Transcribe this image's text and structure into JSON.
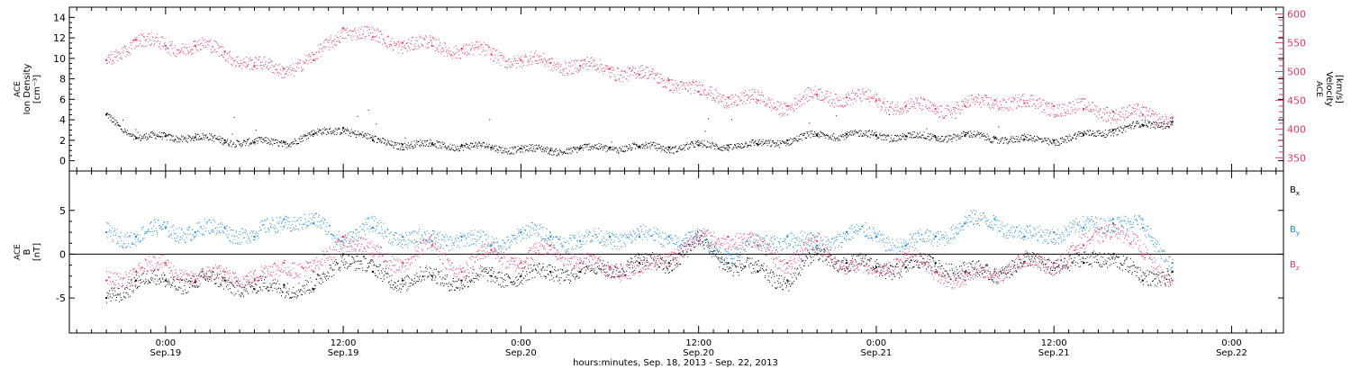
{
  "colors": {
    "black": "#000000",
    "blue": "#1f8be0",
    "pink": "#e8396b"
  },
  "chart_data": [
    {
      "type": "scatter",
      "panel": "plasma",
      "ylabel_left": [
        "ACE",
        "Ion Density",
        "[cm⁻³]"
      ],
      "ylabel_right": [
        "ACE",
        "Velocity",
        "[km/s]"
      ],
      "left_ticks": [
        "0",
        "2",
        "4",
        "6",
        "8",
        "10",
        "12",
        "14"
      ],
      "left_ylim": [
        -1,
        15
      ],
      "right_ticks": [
        "350",
        "400",
        "450",
        "500",
        "550",
        "600"
      ],
      "right_ylim": [
        327,
        612
      ],
      "x_unit": "hours since 00:00 Sep. 18, 2013",
      "series": [
        {
          "axis": "left",
          "color": "black",
          "x": [
            20,
            22,
            24,
            26,
            28,
            30,
            32,
            34,
            36,
            38,
            40,
            42,
            44,
            46,
            48,
            50,
            52,
            54,
            56,
            58,
            60,
            62,
            64,
            66,
            68,
            70,
            72,
            74,
            76,
            78,
            80,
            82,
            84,
            86,
            88,
            90,
            92
          ],
          "values": [
            4.5,
            2.2,
            2.4,
            2.3,
            2.0,
            1.8,
            1.8,
            2.6,
            3.2,
            2.0,
            1.6,
            1.6,
            1.5,
            1.3,
            1.2,
            1.0,
            1.2,
            1.3,
            1.4,
            1.3,
            1.5,
            1.5,
            1.6,
            2.0,
            2.5,
            2.6,
            2.5,
            2.4,
            2.3,
            2.5,
            2.2,
            2.1,
            2.0,
            2.5,
            3.0,
            3.5,
            3.8
          ]
        },
        {
          "axis": "right",
          "color": "pink",
          "x": [
            20,
            22,
            24,
            26,
            28,
            30,
            32,
            34,
            36,
            38,
            40,
            42,
            44,
            46,
            48,
            50,
            52,
            54,
            56,
            58,
            60,
            62,
            64,
            66,
            68,
            70,
            72,
            74,
            76,
            78,
            80,
            82,
            84,
            86,
            88,
            90,
            92
          ],
          "values": [
            520,
            555,
            545,
            545,
            535,
            510,
            505,
            520,
            575,
            560,
            550,
            545,
            540,
            530,
            520,
            515,
            510,
            505,
            495,
            485,
            465,
            455,
            450,
            440,
            460,
            455,
            450,
            440,
            435,
            440,
            450,
            445,
            440,
            435,
            430,
            425,
            420
          ]
        }
      ]
    },
    {
      "type": "scatter",
      "panel": "magnetic",
      "ylabel_left": [
        "ACE",
        "B",
        "[nT]"
      ],
      "left_ticks": [
        "-5",
        "0",
        "5"
      ],
      "left_ylim": [
        -9,
        9.5
      ],
      "reference_line": 0,
      "legend": [
        "Bx",
        "By",
        "Bz"
      ],
      "legend_placement": "right",
      "x_unit": "hours since 00:00 Sep. 18, 2013",
      "series": [
        {
          "name": "Bx",
          "color": "black",
          "x": [
            20,
            22,
            24,
            26,
            28,
            30,
            32,
            34,
            36,
            38,
            40,
            42,
            44,
            46,
            48,
            50,
            52,
            54,
            56,
            58,
            60,
            62,
            64,
            66,
            68,
            70,
            72,
            74,
            76,
            78,
            80,
            82,
            84,
            86,
            88,
            90,
            92
          ],
          "values": [
            -5.0,
            -3.0,
            -3.0,
            -3.2,
            -3.0,
            -4.0,
            -3.5,
            -4.0,
            0.0,
            -2.0,
            -3.0,
            -2.5,
            -3.0,
            -2.5,
            -2.5,
            -2.0,
            -2.0,
            -1.5,
            -1.0,
            -1.0,
            1.5,
            -1.0,
            -2.0,
            -3.0,
            0.0,
            -1.0,
            -1.5,
            -1.5,
            -1.0,
            -2.0,
            -2.0,
            -1.0,
            -1.0,
            -1.0,
            0.0,
            -3.0,
            -2.0
          ]
        },
        {
          "name": "By",
          "color": "blue",
          "x": [
            20,
            22,
            24,
            26,
            28,
            30,
            32,
            34,
            36,
            38,
            40,
            42,
            44,
            46,
            48,
            50,
            52,
            54,
            56,
            58,
            60,
            62,
            64,
            66,
            68,
            70,
            72,
            74,
            76,
            78,
            80,
            82,
            84,
            86,
            88,
            90,
            92
          ],
          "values": [
            2.5,
            2.0,
            3.0,
            2.5,
            3.0,
            2.0,
            4.0,
            3.5,
            2.0,
            3.0,
            2.0,
            1.5,
            2.0,
            1.0,
            2.5,
            2.0,
            1.5,
            2.0,
            2.0,
            2.0,
            1.5,
            0.0,
            1.0,
            2.0,
            1.0,
            2.5,
            2.0,
            1.0,
            2.0,
            3.5,
            4.0,
            2.0,
            2.5,
            3.0,
            4.0,
            3.0,
            -1.0
          ]
        },
        {
          "name": "Bz",
          "color": "pink",
          "x": [
            20,
            22,
            24,
            26,
            28,
            30,
            32,
            34,
            36,
            38,
            40,
            42,
            44,
            46,
            48,
            50,
            52,
            54,
            56,
            58,
            60,
            62,
            64,
            66,
            68,
            70,
            72,
            74,
            76,
            78,
            80,
            82,
            84,
            86,
            88,
            90,
            92
          ],
          "values": [
            -3.0,
            -2.0,
            -1.0,
            -3.0,
            -2.0,
            -3.0,
            -1.0,
            -2.0,
            2.0,
            0.0,
            -1.0,
            1.0,
            -2.0,
            0.5,
            -1.0,
            1.0,
            -1.0,
            -1.5,
            -2.0,
            0.0,
            1.5,
            2.0,
            1.0,
            -1.0,
            1.5,
            -1.5,
            -2.0,
            0.0,
            -2.0,
            -3.0,
            -2.0,
            -1.0,
            -1.0,
            1.0,
            3.5,
            0.0,
            -3.0
          ]
        }
      ]
    }
  ],
  "x_axis": {
    "xlim": [
      17.5,
      99.5
    ],
    "ticks": [
      {
        "x": 24,
        "time": "0:00",
        "date": "Sep.19"
      },
      {
        "x": 36,
        "time": "12:00",
        "date": "Sep.19"
      },
      {
        "x": 48,
        "time": "0:00",
        "date": "Sep.20"
      },
      {
        "x": 60,
        "time": "12:00",
        "date": "Sep.20"
      },
      {
        "x": 72,
        "time": "0:00",
        "date": "Sep.21"
      },
      {
        "x": 84,
        "time": "12:00",
        "date": "Sep.21"
      },
      {
        "x": 96,
        "time": "0:00",
        "date": "Sep.22"
      }
    ],
    "label": "hours:minutes, Sep. 18, 2013 - Sep. 22, 2013"
  }
}
